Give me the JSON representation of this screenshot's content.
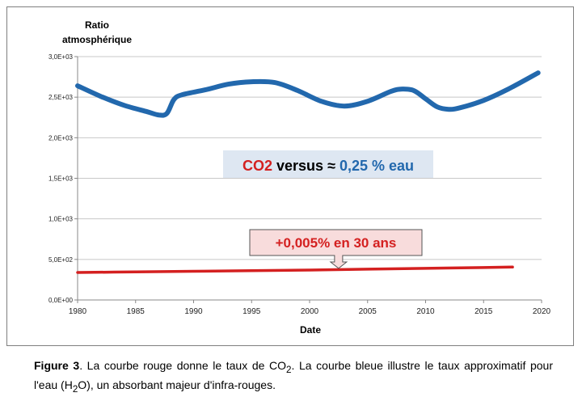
{
  "chart_data": {
    "type": "line",
    "title": "",
    "ylabel_line1": "Ratio",
    "ylabel_line2": "atmosphérique",
    "xlabel": "Date",
    "xlim": [
      1980,
      2020
    ],
    "ylim": [
      0,
      3000
    ],
    "xticks": [
      {
        "value": 1980,
        "label": "1980"
      },
      {
        "value": 1985,
        "label": "1985"
      },
      {
        "value": 1990,
        "label": "1990"
      },
      {
        "value": 1995,
        "label": "1995"
      },
      {
        "value": 2000,
        "label": "2000"
      },
      {
        "value": 2005,
        "label": "2005"
      },
      {
        "value": 2010,
        "label": "2010"
      },
      {
        "value": 2015,
        "label": "2015"
      },
      {
        "value": 2020,
        "label": "2020"
      }
    ],
    "yticks": [
      {
        "value": 0,
        "label": "0,0E+00"
      },
      {
        "value": 500,
        "label": "5,0E+02"
      },
      {
        "value": 1000,
        "label": "1,0E+03"
      },
      {
        "value": 1500,
        "label": "1,5E+03"
      },
      {
        "value": 2000,
        "label": "2,0E+03"
      },
      {
        "value": 2500,
        "label": "2,5E+03"
      },
      {
        "value": 3000,
        "label": "3,0E+03"
      }
    ],
    "grid": "horizontal",
    "series": [
      {
        "color": "#2268ad",
        "x": [
          1980,
          1982,
          1984,
          1986,
          1987,
          1987.7,
          1988.3,
          1989,
          1991,
          1993,
          1995,
          1997,
          1999,
          2001,
          2003,
          2005,
          2007,
          2008,
          2009,
          2010,
          2011,
          2012,
          2013,
          2015,
          2017,
          2019.7
        ],
        "y": [
          2640,
          2510,
          2400,
          2320,
          2280,
          2300,
          2470,
          2530,
          2590,
          2660,
          2690,
          2680,
          2580,
          2450,
          2390,
          2450,
          2570,
          2600,
          2580,
          2480,
          2380,
          2350,
          2370,
          2460,
          2590,
          2800
        ]
      },
      {
        "color": "#d42020",
        "x": [
          1980,
          1985,
          1990,
          1995,
          2000,
          2005,
          2010,
          2015,
          2017.5
        ],
        "y": [
          339,
          346,
          354,
          361,
          369,
          380,
          390,
          400,
          406
        ]
      }
    ],
    "annotations": {
      "legend": {
        "co2": "CO2",
        "versus": "versus",
        "approx": "≈",
        "water": "0,25 % eau",
        "co2_color": "#d42020",
        "water_color": "#2268ad"
      },
      "callout": {
        "text": "+0,005% en 30 ans",
        "color": "#d42020",
        "fill": "#f8dcdc",
        "arrow_x": 2002.5
      }
    }
  },
  "caption": {
    "label": "Figure 3",
    "text1": ". La courbe rouge donne le taux de CO",
    "sub1": "2",
    "text2": ". La courbe bleue illustre le taux approximatif pour l'eau (H",
    "sub2": "2",
    "text3": "O), un absorbant majeur d'infra-rouges."
  }
}
